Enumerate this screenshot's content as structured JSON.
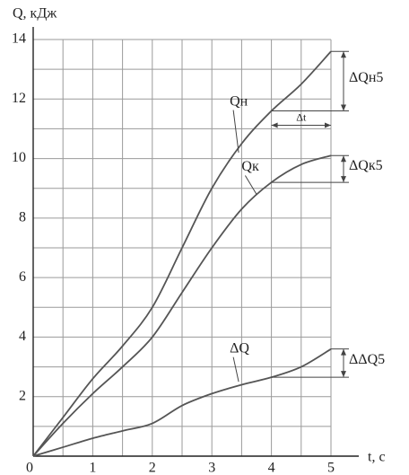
{
  "chart_data": {
    "type": "line",
    "ylabel": "Q, кДж",
    "xlabel": "t, c",
    "x": [
      0,
      0.5,
      1,
      1.5,
      2,
      2.5,
      3,
      3.5,
      4,
      4.5,
      5
    ],
    "series": [
      {
        "name": "Qн",
        "color": "#555555",
        "values": [
          0,
          1.3,
          2.6,
          3.7,
          5.0,
          7.0,
          9.0,
          10.5,
          11.6,
          12.5,
          13.6
        ]
      },
      {
        "name": "Qк",
        "color": "#555555",
        "values": [
          0,
          1.1,
          2.1,
          3.0,
          4.0,
          5.5,
          7.0,
          8.3,
          9.2,
          9.8,
          10.1
        ]
      },
      {
        "name": "ΔQ",
        "color": "#555555",
        "values": [
          0,
          0.3,
          0.6,
          0.85,
          1.1,
          1.7,
          2.1,
          2.4,
          2.65,
          3.0,
          3.6
        ]
      }
    ],
    "annotations": [
      "ΔQн5",
      "ΔQк5",
      "ΔΔQ5",
      "Δt"
    ],
    "xlim": [
      0,
      5
    ],
    "ylim": [
      0,
      14
    ],
    "xticks": [
      0,
      1,
      2,
      3,
      4,
      5
    ],
    "yticks": [
      0,
      2,
      4,
      6,
      8,
      10,
      12,
      14
    ],
    "grid": true
  }
}
